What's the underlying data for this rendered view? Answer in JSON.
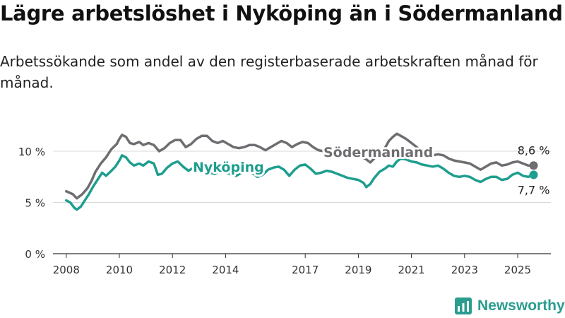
{
  "header": {
    "title": "Lägre arbetslöshet i Nyköping än i Södermanland",
    "subtitle": "Arbetssökande som andel av den registerbaserade arbetskraften månad för månad."
  },
  "brand": {
    "name": "Newsworthy",
    "icon": "newsworthy-logo-icon",
    "color": "#2a9d8f"
  },
  "chart_data": {
    "type": "line",
    "title": "",
    "xlabel": "",
    "ylabel": "",
    "ylim": [
      0,
      12
    ],
    "xlim": [
      2007.5,
      2026.25
    ],
    "y_ticks": [
      {
        "value": 0,
        "label": "0 %"
      },
      {
        "value": 5,
        "label": "5 %"
      },
      {
        "value": 10,
        "label": "10 %"
      }
    ],
    "x_ticks": [
      {
        "value": 2008,
        "label": "2008"
      },
      {
        "value": 2010,
        "label": "2010"
      },
      {
        "value": 2012,
        "label": "2012"
      },
      {
        "value": 2014,
        "label": "2014"
      },
      {
        "value": 2017,
        "label": "2017"
      },
      {
        "value": 2019,
        "label": "2019"
      },
      {
        "value": 2021,
        "label": "2021"
      },
      {
        "value": 2023,
        "label": "2023"
      },
      {
        "value": 2025,
        "label": "2025"
      }
    ],
    "grid": true,
    "legend": "inline labels",
    "series": [
      {
        "name": "Södermanland",
        "color": "#6e6e72",
        "end_label": "8,6 %",
        "points": [
          [
            2008.0,
            6.1
          ],
          [
            2008.25,
            5.8
          ],
          [
            2008.4,
            5.4
          ],
          [
            2008.6,
            5.8
          ],
          [
            2008.8,
            6.4
          ],
          [
            2008.95,
            7.1
          ],
          [
            2009.1,
            8.0
          ],
          [
            2009.3,
            8.8
          ],
          [
            2009.5,
            9.4
          ],
          [
            2009.7,
            10.2
          ],
          [
            2009.9,
            10.7
          ],
          [
            2010.0,
            11.2
          ],
          [
            2010.1,
            11.6
          ],
          [
            2010.25,
            11.4
          ],
          [
            2010.4,
            10.8
          ],
          [
            2010.55,
            10.7
          ],
          [
            2010.75,
            10.9
          ],
          [
            2010.9,
            10.6
          ],
          [
            2011.1,
            10.8
          ],
          [
            2011.3,
            10.6
          ],
          [
            2011.5,
            10.0
          ],
          [
            2011.7,
            10.3
          ],
          [
            2011.9,
            10.8
          ],
          [
            2012.1,
            11.1
          ],
          [
            2012.3,
            11.1
          ],
          [
            2012.5,
            10.4
          ],
          [
            2012.7,
            10.7
          ],
          [
            2012.9,
            11.2
          ],
          [
            2013.1,
            11.5
          ],
          [
            2013.3,
            11.5
          ],
          [
            2013.5,
            11.0
          ],
          [
            2013.7,
            10.8
          ],
          [
            2013.9,
            11.0
          ],
          [
            2014.1,
            10.7
          ],
          [
            2014.3,
            10.4
          ],
          [
            2014.5,
            10.3
          ],
          [
            2014.7,
            10.4
          ],
          [
            2014.9,
            10.6
          ],
          [
            2015.1,
            10.6
          ],
          [
            2015.3,
            10.4
          ],
          [
            2015.5,
            10.1
          ],
          [
            2015.7,
            10.4
          ],
          [
            2015.9,
            10.7
          ],
          [
            2016.1,
            11.0
          ],
          [
            2016.3,
            10.8
          ],
          [
            2016.5,
            10.4
          ],
          [
            2016.7,
            10.7
          ],
          [
            2016.9,
            10.9
          ],
          [
            2017.1,
            10.8
          ],
          [
            2017.3,
            10.4
          ],
          [
            2017.5,
            10.1
          ],
          [
            2017.7,
            10.0
          ],
          [
            2017.9,
            10.3
          ],
          [
            2018.1,
            10.2
          ],
          [
            2018.3,
            9.9
          ],
          [
            2018.5,
            9.7
          ],
          [
            2018.7,
            9.6
          ],
          [
            2018.9,
            9.6
          ],
          [
            2019.1,
            9.5
          ],
          [
            2019.3,
            9.2
          ],
          [
            2019.45,
            8.9
          ],
          [
            2019.6,
            9.3
          ],
          [
            2019.8,
            9.8
          ],
          [
            2020.0,
            10.3
          ],
          [
            2020.15,
            11.0
          ],
          [
            2020.3,
            11.4
          ],
          [
            2020.45,
            11.7
          ],
          [
            2020.6,
            11.5
          ],
          [
            2020.8,
            11.2
          ],
          [
            2021.0,
            10.8
          ],
          [
            2021.2,
            10.4
          ],
          [
            2021.4,
            10.0
          ],
          [
            2021.6,
            9.8
          ],
          [
            2021.8,
            9.6
          ],
          [
            2022.0,
            9.7
          ],
          [
            2022.2,
            9.6
          ],
          [
            2022.4,
            9.3
          ],
          [
            2022.6,
            9.1
          ],
          [
            2022.8,
            9.0
          ],
          [
            2023.0,
            8.9
          ],
          [
            2023.2,
            8.8
          ],
          [
            2023.4,
            8.5
          ],
          [
            2023.6,
            8.2
          ],
          [
            2023.8,
            8.5
          ],
          [
            2024.0,
            8.8
          ],
          [
            2024.2,
            8.9
          ],
          [
            2024.4,
            8.6
          ],
          [
            2024.6,
            8.7
          ],
          [
            2024.8,
            8.9
          ],
          [
            2025.0,
            9.0
          ],
          [
            2025.2,
            8.8
          ],
          [
            2025.4,
            8.6
          ],
          [
            2025.6,
            8.6
          ]
        ]
      },
      {
        "name": "Nyköping",
        "color": "#1e9e8f",
        "end_label": "7,7 %",
        "points": [
          [
            2008.0,
            5.2
          ],
          [
            2008.15,
            5.0
          ],
          [
            2008.3,
            4.5
          ],
          [
            2008.4,
            4.3
          ],
          [
            2008.55,
            4.6
          ],
          [
            2008.7,
            5.2
          ],
          [
            2008.85,
            5.8
          ],
          [
            2009.0,
            6.5
          ],
          [
            2009.2,
            7.3
          ],
          [
            2009.35,
            7.9
          ],
          [
            2009.5,
            7.6
          ],
          [
            2009.7,
            8.1
          ],
          [
            2009.85,
            8.5
          ],
          [
            2010.0,
            9.1
          ],
          [
            2010.1,
            9.6
          ],
          [
            2010.25,
            9.4
          ],
          [
            2010.4,
            8.9
          ],
          [
            2010.55,
            8.6
          ],
          [
            2010.75,
            8.8
          ],
          [
            2010.9,
            8.6
          ],
          [
            2011.1,
            9.0
          ],
          [
            2011.3,
            8.8
          ],
          [
            2011.45,
            7.7
          ],
          [
            2011.6,
            7.8
          ],
          [
            2011.8,
            8.4
          ],
          [
            2012.0,
            8.8
          ],
          [
            2012.2,
            9.0
          ],
          [
            2012.4,
            8.5
          ],
          [
            2012.6,
            8.1
          ],
          [
            2012.8,
            8.4
          ],
          [
            2013.0,
            8.6
          ],
          [
            2013.2,
            8.1
          ],
          [
            2013.4,
            7.9
          ],
          [
            2013.6,
            7.8
          ],
          [
            2013.8,
            8.1
          ],
          [
            2014.0,
            8.0
          ],
          [
            2014.2,
            7.7
          ],
          [
            2014.4,
            7.6
          ],
          [
            2014.6,
            7.9
          ],
          [
            2014.8,
            8.1
          ],
          [
            2015.0,
            7.9
          ],
          [
            2015.2,
            7.5
          ],
          [
            2015.4,
            7.7
          ],
          [
            2015.6,
            8.2
          ],
          [
            2015.8,
            8.4
          ],
          [
            2016.0,
            8.5
          ],
          [
            2016.2,
            8.2
          ],
          [
            2016.4,
            7.6
          ],
          [
            2016.6,
            8.2
          ],
          [
            2016.8,
            8.6
          ],
          [
            2017.0,
            8.7
          ],
          [
            2017.2,
            8.3
          ],
          [
            2017.4,
            7.8
          ],
          [
            2017.6,
            7.9
          ],
          [
            2017.8,
            8.1
          ],
          [
            2018.0,
            8.0
          ],
          [
            2018.2,
            7.8
          ],
          [
            2018.4,
            7.6
          ],
          [
            2018.6,
            7.4
          ],
          [
            2018.8,
            7.3
          ],
          [
            2019.0,
            7.2
          ],
          [
            2019.2,
            6.9
          ],
          [
            2019.3,
            6.5
          ],
          [
            2019.45,
            6.8
          ],
          [
            2019.6,
            7.4
          ],
          [
            2019.8,
            8.0
          ],
          [
            2020.0,
            8.3
          ],
          [
            2020.15,
            8.6
          ],
          [
            2020.3,
            8.5
          ],
          [
            2020.45,
            9.0
          ],
          [
            2020.6,
            9.3
          ],
          [
            2020.8,
            9.2
          ],
          [
            2021.0,
            9.0
          ],
          [
            2021.2,
            8.9
          ],
          [
            2021.4,
            8.7
          ],
          [
            2021.6,
            8.6
          ],
          [
            2021.8,
            8.5
          ],
          [
            2022.0,
            8.6
          ],
          [
            2022.2,
            8.3
          ],
          [
            2022.4,
            7.9
          ],
          [
            2022.6,
            7.6
          ],
          [
            2022.8,
            7.5
          ],
          [
            2023.0,
            7.6
          ],
          [
            2023.2,
            7.5
          ],
          [
            2023.4,
            7.2
          ],
          [
            2023.6,
            7.0
          ],
          [
            2023.8,
            7.3
          ],
          [
            2024.0,
            7.5
          ],
          [
            2024.2,
            7.5
          ],
          [
            2024.4,
            7.2
          ],
          [
            2024.6,
            7.3
          ],
          [
            2024.8,
            7.7
          ],
          [
            2025.0,
            7.9
          ],
          [
            2025.2,
            7.6
          ],
          [
            2025.4,
            7.5
          ],
          [
            2025.6,
            7.7
          ]
        ]
      }
    ]
  }
}
